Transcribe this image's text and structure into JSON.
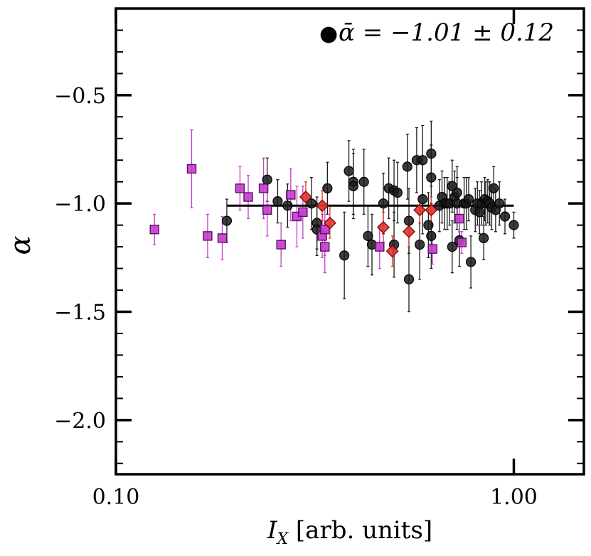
{
  "chart_data": {
    "type": "scatter",
    "xscale": "log",
    "xlim": [
      0.1,
      1.5
    ],
    "ylim": [
      -2.25,
      -0.1
    ],
    "xlabel": {
      "main": "I",
      "sub": "X",
      "rest": " [arb. units]"
    },
    "ylabel": "α",
    "xticks": [
      {
        "value": 0.1,
        "label": "0.10"
      },
      {
        "value": 1.0,
        "label": "1.00"
      }
    ],
    "yticks": [
      {
        "value": -0.5,
        "label": "−0.5"
      },
      {
        "value": -1.0,
        "label": "−1.0"
      },
      {
        "value": -1.5,
        "label": "−1.5"
      },
      {
        "value": -2.0,
        "label": "−2.0"
      }
    ],
    "annotation": {
      "symbol": "●",
      "text": "ᾱ = −1.01 ± 0.12"
    },
    "mean_line": {
      "y": -1.01,
      "x": [
        0.19,
        1.0
      ]
    },
    "colors": {
      "circle": "#1a1a1a",
      "square": "#c43ccf",
      "square_edge": "#5a1160",
      "diamond": "#e8322e",
      "diamond_edge": "#7a0f0f",
      "square_err": "#c43ccf",
      "diamond_err": "#e8322e"
    },
    "series": [
      {
        "marker": "circle",
        "points": [
          [
            0.19,
            -1.08,
            0.1
          ],
          [
            0.24,
            -0.89,
            0.1
          ],
          [
            0.255,
            -0.99,
            0.1
          ],
          [
            0.27,
            -1.01,
            0.1
          ],
          [
            0.31,
            -1.0,
            0.12
          ],
          [
            0.32,
            -1.09,
            0.12
          ],
          [
            0.32,
            -1.12,
            0.12
          ],
          [
            0.34,
            -0.93,
            0.12
          ],
          [
            0.375,
            -1.24,
            0.2
          ],
          [
            0.385,
            -0.85,
            0.14
          ],
          [
            0.395,
            -0.9,
            0.15
          ],
          [
            0.395,
            -0.92,
            0.15
          ],
          [
            0.42,
            -0.9,
            0.15
          ],
          [
            0.43,
            -1.15,
            0.14
          ],
          [
            0.44,
            -1.19,
            0.14
          ],
          [
            0.47,
            -1.0,
            0.14
          ],
          [
            0.485,
            -0.93,
            0.14
          ],
          [
            0.5,
            -0.94,
            0.14
          ],
          [
            0.51,
            -0.95,
            0.14
          ],
          [
            0.5,
            -1.19,
            0.15
          ],
          [
            0.54,
            -0.83,
            0.15
          ],
          [
            0.545,
            -1.08,
            0.15
          ],
          [
            0.545,
            -1.35,
            0.15
          ],
          [
            0.57,
            -0.8,
            0.15
          ],
          [
            0.58,
            -1.19,
            0.16
          ],
          [
            0.59,
            -0.8,
            0.16
          ],
          [
            0.59,
            -0.98,
            0.16
          ],
          [
            0.61,
            -1.1,
            0.15
          ],
          [
            0.62,
            -0.77,
            0.15
          ],
          [
            0.62,
            -0.88,
            0.15
          ],
          [
            0.62,
            -1.15,
            0.15
          ],
          [
            0.65,
            -1.01,
            0.12
          ],
          [
            0.66,
            -0.97,
            0.12
          ],
          [
            0.67,
            -1.0,
            0.12
          ],
          [
            0.68,
            -1.0,
            0.12
          ],
          [
            0.69,
            -1.0,
            0.1
          ],
          [
            0.7,
            -0.92,
            0.12
          ],
          [
            0.71,
            -0.97,
            0.12
          ],
          [
            0.72,
            -0.95,
            0.12
          ],
          [
            0.72,
            -1.0,
            0.12
          ],
          [
            0.7,
            -1.2,
            0.12
          ],
          [
            0.73,
            -1.17,
            0.12
          ],
          [
            0.75,
            -1.0,
            0.12
          ],
          [
            0.76,
            -1.0,
            0.12
          ],
          [
            0.77,
            -0.98,
            0.1
          ],
          [
            0.78,
            -1.27,
            0.12
          ],
          [
            0.8,
            -1.03,
            0.1
          ],
          [
            0.81,
            -1.0,
            0.1
          ],
          [
            0.82,
            -1.04,
            0.1
          ],
          [
            0.83,
            -1.0,
            0.1
          ],
          [
            0.84,
            -1.16,
            0.1
          ],
          [
            0.845,
            -0.98,
            0.1
          ],
          [
            0.85,
            -1.0,
            0.1
          ],
          [
            0.86,
            -0.99,
            0.1
          ],
          [
            0.87,
            -1.0,
            0.1
          ],
          [
            0.88,
            -1.02,
            0.1
          ],
          [
            0.89,
            -0.93,
            0.1
          ],
          [
            0.9,
            -1.03,
            0.1
          ],
          [
            0.92,
            -1.0,
            0.1
          ],
          [
            0.95,
            -1.06,
            0.08
          ],
          [
            1.0,
            -1.1,
            0.06
          ]
        ]
      },
      {
        "marker": "square",
        "points": [
          [
            0.125,
            -1.12,
            0.07
          ],
          [
            0.155,
            -0.84,
            0.18
          ],
          [
            0.17,
            -1.15,
            0.1
          ],
          [
            0.185,
            -1.16,
            0.1
          ],
          [
            0.205,
            -0.93,
            0.1
          ],
          [
            0.215,
            -0.97,
            0.1
          ],
          [
            0.235,
            -0.93,
            0.14
          ],
          [
            0.24,
            -1.03,
            0.12
          ],
          [
            0.26,
            -1.19,
            0.1
          ],
          [
            0.275,
            -0.96,
            0.12
          ],
          [
            0.285,
            -1.06,
            0.14
          ],
          [
            0.295,
            -1.04,
            0.12
          ],
          [
            0.33,
            -1.15,
            0.1
          ],
          [
            0.335,
            -1.12,
            0.12
          ],
          [
            0.335,
            -1.2,
            0.12
          ],
          [
            0.46,
            -1.2,
            0.1
          ],
          [
            0.625,
            -1.21,
            0.07
          ],
          [
            0.73,
            -1.07,
            0.06
          ],
          [
            0.74,
            -1.18,
            0.05
          ]
        ]
      },
      {
        "marker": "diamond",
        "points": [
          [
            0.3,
            -0.97,
            0.07
          ],
          [
            0.33,
            -1.01,
            0.07
          ],
          [
            0.345,
            -1.09,
            0.07
          ],
          [
            0.47,
            -1.11,
            0.07
          ],
          [
            0.495,
            -1.22,
            0.07
          ],
          [
            0.545,
            -1.13,
            0.07
          ],
          [
            0.58,
            -1.03,
            0.06
          ],
          [
            0.62,
            -1.03,
            0.06
          ]
        ]
      }
    ]
  }
}
